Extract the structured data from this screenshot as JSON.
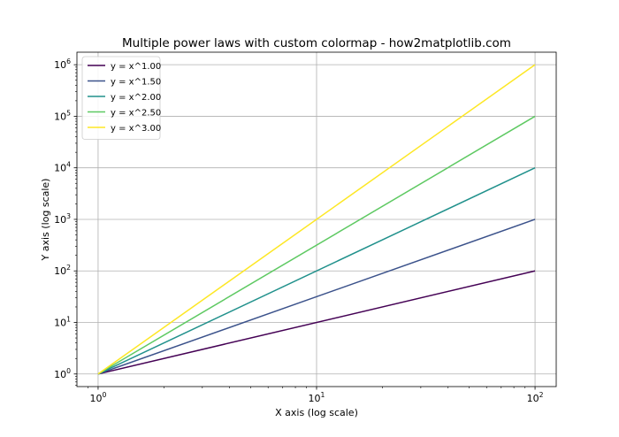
{
  "chart_data": {
    "type": "line",
    "title": "Multiple power laws with custom colormap - how2matplotlib.com",
    "xlabel": "X axis (log scale)",
    "ylabel": "Y axis (log scale)",
    "xscale": "log",
    "yscale": "log",
    "xlim": [
      0.8,
      125
    ],
    "ylim": [
      0.57,
      1750000
    ],
    "grid": true,
    "legend_position": "top-left",
    "x_ticks": [
      {
        "value": 1,
        "base": "10",
        "exp": "0"
      },
      {
        "value": 10,
        "base": "10",
        "exp": "1"
      },
      {
        "value": 100,
        "base": "10",
        "exp": "2"
      }
    ],
    "y_ticks": [
      {
        "value": 1,
        "base": "10",
        "exp": "0"
      },
      {
        "value": 10,
        "base": "10",
        "exp": "1"
      },
      {
        "value": 100,
        "base": "10",
        "exp": "2"
      },
      {
        "value": 1000,
        "base": "10",
        "exp": "3"
      },
      {
        "value": 10000,
        "base": "10",
        "exp": "4"
      },
      {
        "value": 100000,
        "base": "10",
        "exp": "5"
      },
      {
        "value": 1000000,
        "base": "10",
        "exp": "6"
      }
    ],
    "x": [
      1,
      100
    ],
    "series": [
      {
        "name": "y = x^1.00",
        "color": "#440154",
        "values": [
          1,
          100
        ]
      },
      {
        "name": "y = x^1.50",
        "color": "#3b528b",
        "values": [
          1,
          1000
        ]
      },
      {
        "name": "y = x^2.00",
        "color": "#21918c",
        "values": [
          1,
          10000
        ]
      },
      {
        "name": "y = x^2.50",
        "color": "#5ec962",
        "values": [
          1,
          100000
        ]
      },
      {
        "name": "y = x^3.00",
        "color": "#fde725",
        "values": [
          1,
          1000000
        ]
      }
    ]
  }
}
